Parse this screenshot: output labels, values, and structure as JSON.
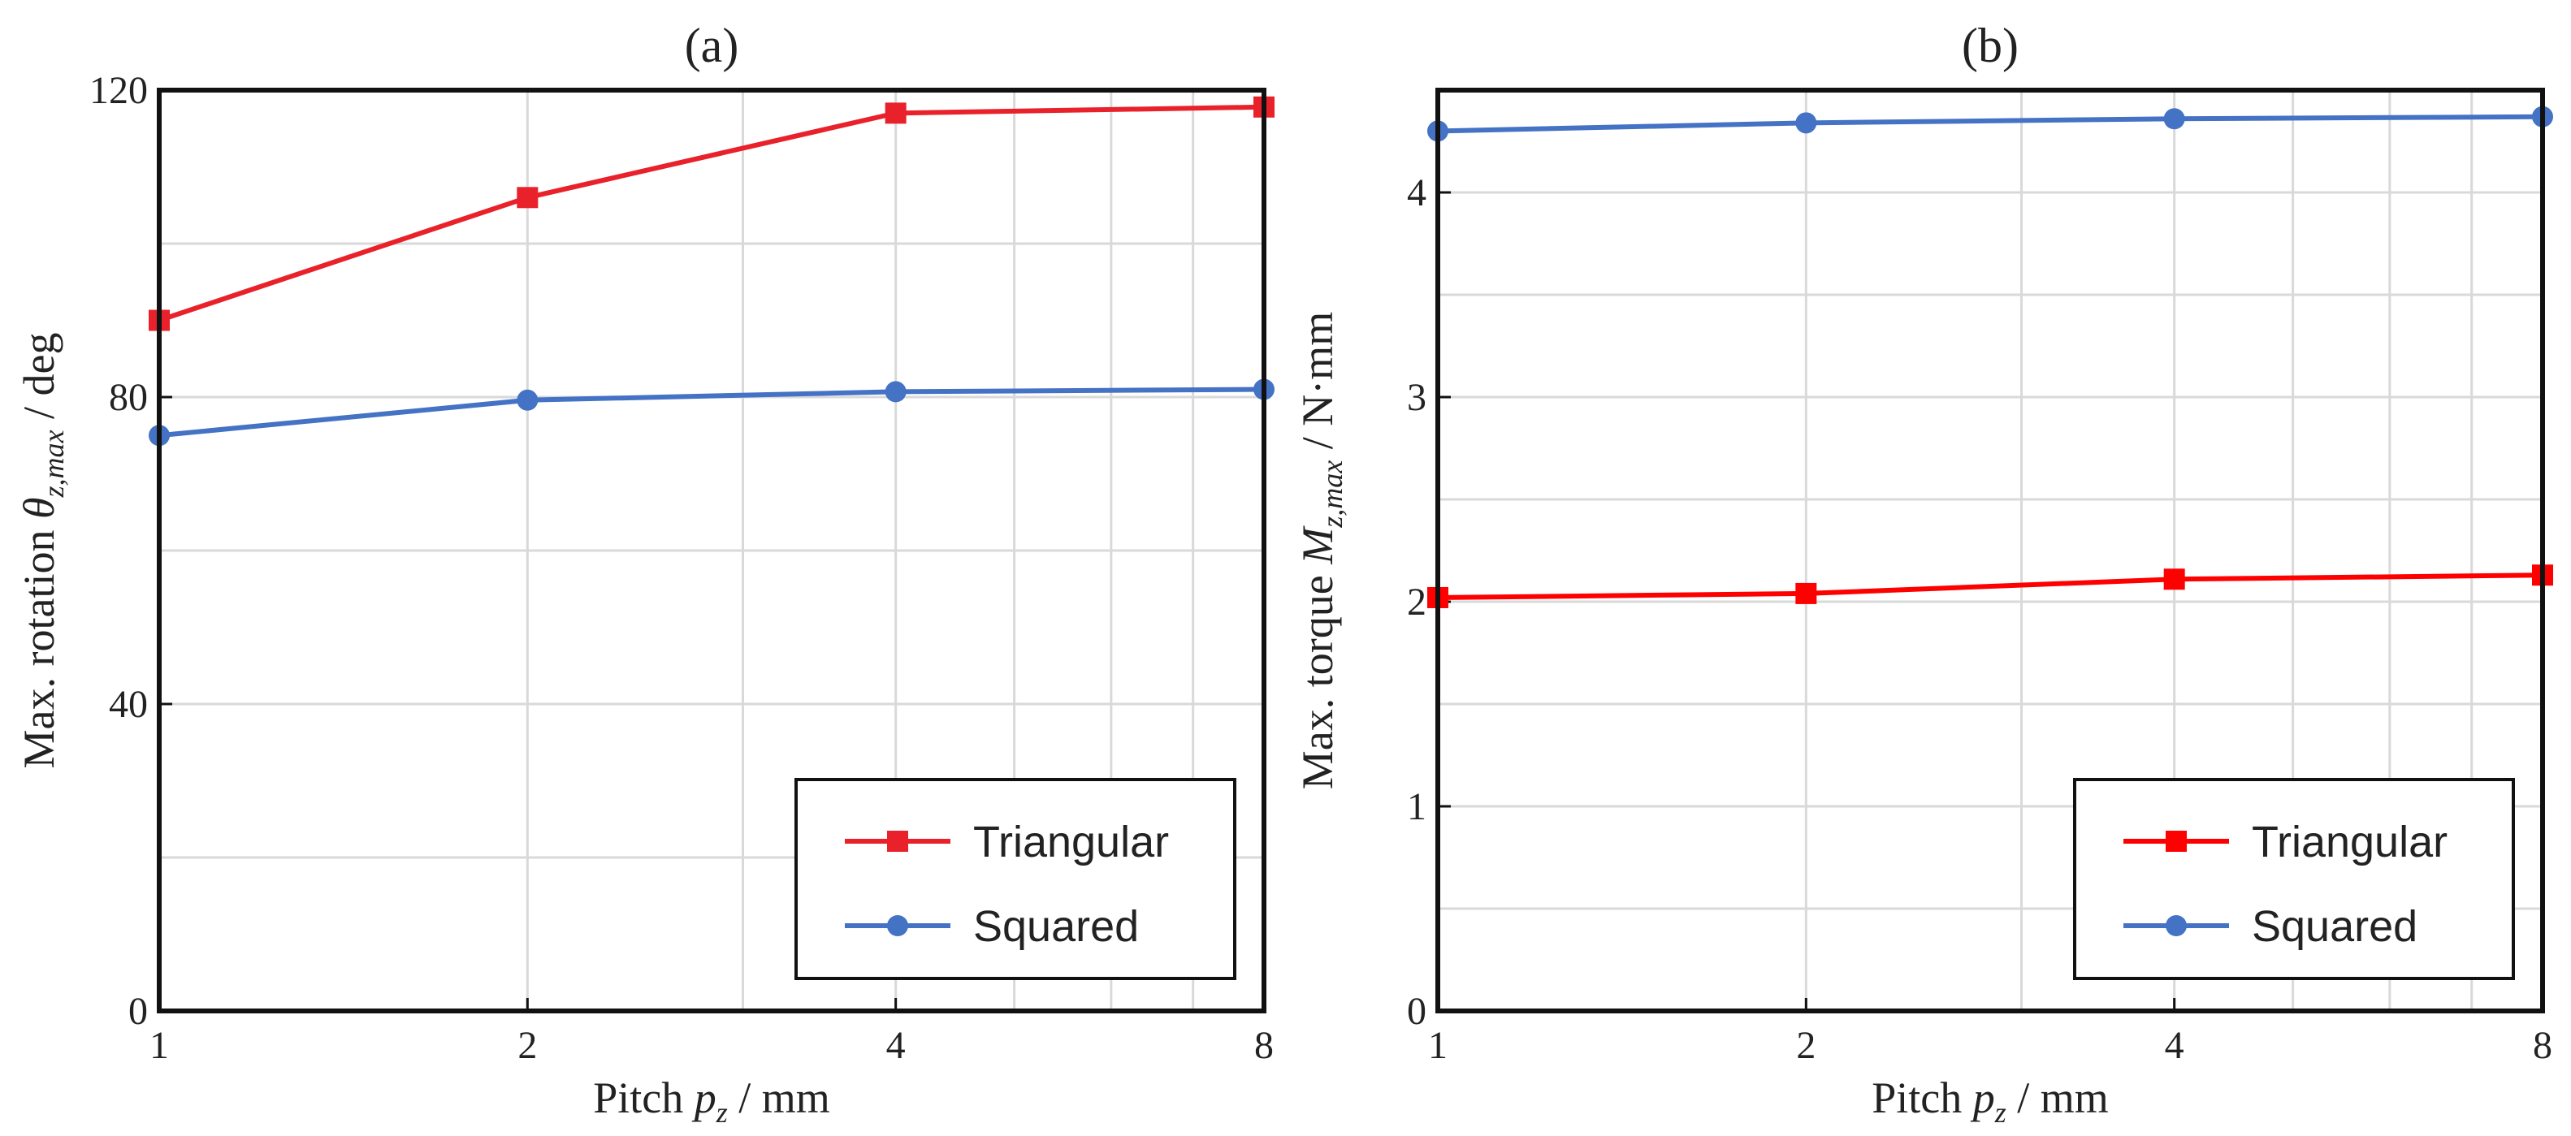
{
  "chart_data": [
    {
      "type": "line",
      "title": "(a)",
      "xlabel": {
        "prefix": "Pitch ",
        "symbol": "p",
        "sub": "z",
        "suffix": " / mm"
      },
      "ylabel": {
        "prefix": "Max. rotation ",
        "symbol": "θ",
        "sub": "z,max",
        "suffix": " / deg"
      },
      "x_scale": "log2",
      "xlim": [
        1,
        8
      ],
      "ylim": [
        0,
        120
      ],
      "x_ticks": [
        1,
        2,
        4,
        8
      ],
      "x_tick_labels": [
        "1",
        "2",
        "4",
        "8"
      ],
      "y_ticks": [
        0,
        40,
        80,
        120
      ],
      "y_tick_labels": [
        "0",
        "40",
        "80",
        "120"
      ],
      "grid": true,
      "legend_position": "bottom-right",
      "series": [
        {
          "name": "Triangular",
          "color": "#e8212b",
          "marker": "square",
          "x": [
            1,
            2,
            4,
            8
          ],
          "y": [
            90,
            106,
            117,
            117.8
          ]
        },
        {
          "name": "Squared",
          "color": "#4472c4",
          "marker": "circle",
          "x": [
            1,
            2,
            4,
            8
          ],
          "y": [
            75,
            79.6,
            80.7,
            81
          ]
        }
      ]
    },
    {
      "type": "line",
      "title": "(b)",
      "xlabel": {
        "prefix": "Pitch ",
        "symbol": "p",
        "sub": "z",
        "suffix": " / mm"
      },
      "ylabel": {
        "prefix": "Max. torque ",
        "symbol": "M",
        "sub": "z,max",
        "suffix": " / N·mm"
      },
      "x_scale": "log2",
      "xlim": [
        1,
        8
      ],
      "ylim": [
        0,
        4.5
      ],
      "x_ticks": [
        1,
        2,
        4,
        8
      ],
      "x_tick_labels": [
        "1",
        "2",
        "4",
        "8"
      ],
      "y_ticks": [
        0,
        1,
        2,
        3,
        4
      ],
      "y_tick_labels": [
        "0",
        "1",
        "2",
        "3",
        "4"
      ],
      "grid": true,
      "legend_position": "bottom-right",
      "series": [
        {
          "name": "Triangular",
          "color": "#ff0000",
          "marker": "square",
          "x": [
            1,
            2,
            4,
            8
          ],
          "y": [
            2.02,
            2.04,
            2.11,
            2.13
          ]
        },
        {
          "name": "Squared",
          "color": "#4472c4",
          "marker": "circle",
          "x": [
            1,
            2,
            4,
            8
          ],
          "y": [
            4.3,
            4.34,
            4.36,
            4.37
          ]
        }
      ]
    }
  ]
}
